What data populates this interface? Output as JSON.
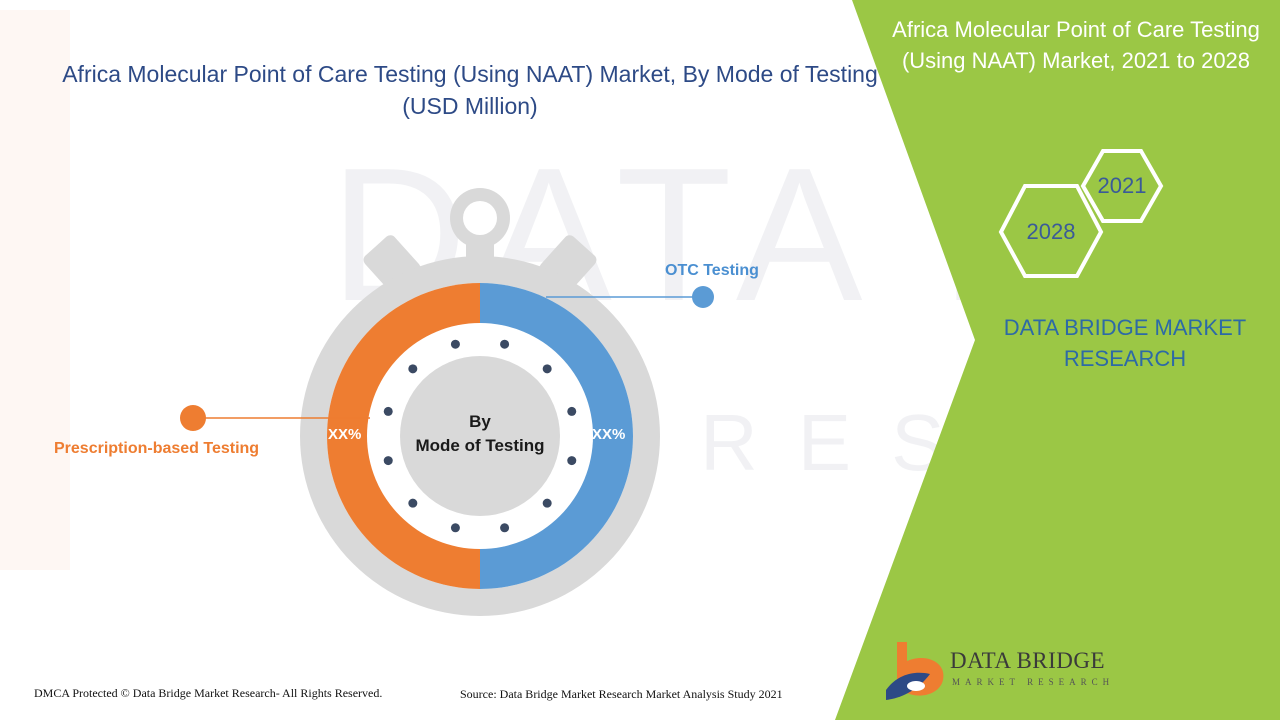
{
  "title": "Africa Molecular Point of Care Testing (Using NAAT) Market, By Mode of Testing (USD Million)",
  "side_panel": {
    "title": "Africa Molecular Point of Care Testing (Using NAAT) Market, 2021 to 2028",
    "year_start": "2021",
    "year_end": "2028",
    "brand": "DATA BRIDGE MARKET RESEARCH",
    "panel_color": "#9bc745"
  },
  "chart_data": {
    "type": "pie",
    "title": "Africa Molecular Point of Care Testing (Using NAAT) Market, By Mode of Testing (USD Million)",
    "center_label_line1": "By",
    "center_label_line2": "Mode of Testing",
    "slices": [
      {
        "name": "OTC Testing",
        "value": 50,
        "label": "XX%",
        "color": "#5b9bd5"
      },
      {
        "name": "Prescription-based Testing",
        "value": 50,
        "label": "XX%",
        "color": "#ee7d31"
      }
    ]
  },
  "footer": {
    "copyright": "DMCA Protected © Data Bridge Market Research- All Rights Reserved.",
    "source": "Source: Data Bridge Market Research Market Analysis Study 2021"
  },
  "logo": {
    "name": "DATA BRIDGE",
    "tagline": "MARKET RESEARCH"
  }
}
